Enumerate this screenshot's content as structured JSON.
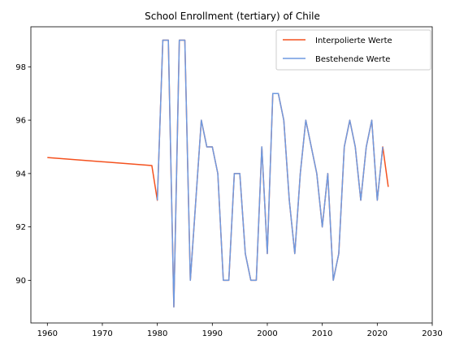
{
  "chart_data": {
    "type": "line",
    "title": "School Enrollment (tertiary) of Chile",
    "xlabel": "",
    "ylabel": "",
    "xlim": [
      1957,
      2030
    ],
    "ylim": [
      88.4,
      99.5
    ],
    "x_ticks": [
      1960,
      1970,
      1980,
      1990,
      2000,
      2010,
      2020,
      2030
    ],
    "y_ticks": [
      90,
      92,
      94,
      96,
      98
    ],
    "grid": false,
    "legend_position": "top-right",
    "series": [
      {
        "name": "Interpolierte Werte",
        "color": "#f4511e",
        "x": [
          1960,
          1979,
          1980,
          1981,
          1982,
          1983,
          1984,
          1985,
          1986,
          1987,
          1988,
          1989,
          1990,
          1991,
          1992,
          1993,
          1994,
          1995,
          1996,
          1997,
          1998,
          1999,
          2000,
          2001,
          2002,
          2003,
          2004,
          2005,
          2006,
          2007,
          2008,
          2009,
          2010,
          2011,
          2012,
          2013,
          2014,
          2015,
          2016,
          2017,
          2018,
          2019,
          2020,
          2021,
          2022
        ],
        "y": [
          94.6,
          94.3,
          93,
          99,
          99,
          89,
          99,
          99,
          90,
          93,
          96,
          95,
          95,
          94,
          90,
          90,
          94,
          94,
          91,
          90,
          90,
          95,
          91,
          97,
          97,
          96,
          93,
          91,
          94,
          96,
          95,
          94,
          92,
          94,
          90,
          91,
          95,
          96,
          95,
          93,
          95,
          96,
          93,
          95,
          93.5
        ]
      },
      {
        "name": "Bestehende Werte",
        "color": "#6f9ae0",
        "x": [
          1980,
          1981,
          1982,
          1983,
          1984,
          1985,
          1986,
          1987,
          1988,
          1989,
          1990,
          1991,
          1992,
          1993,
          1994,
          1995,
          1996,
          1997,
          1998,
          1999,
          2000,
          2001,
          2002,
          2003,
          2004,
          2005,
          2006,
          2007,
          2008,
          2009,
          2010,
          2011,
          2012,
          2013,
          2014,
          2015,
          2016,
          2017,
          2018,
          2019,
          2020,
          2021
        ],
        "y": [
          93,
          99,
          99,
          89,
          99,
          99,
          90,
          93,
          96,
          95,
          95,
          94,
          90,
          90,
          94,
          94,
          91,
          90,
          90,
          95,
          91,
          97,
          97,
          96,
          93,
          91,
          94,
          96,
          95,
          94,
          92,
          94,
          90,
          91,
          95,
          96,
          95,
          93,
          95,
          96,
          93,
          95
        ]
      }
    ]
  }
}
